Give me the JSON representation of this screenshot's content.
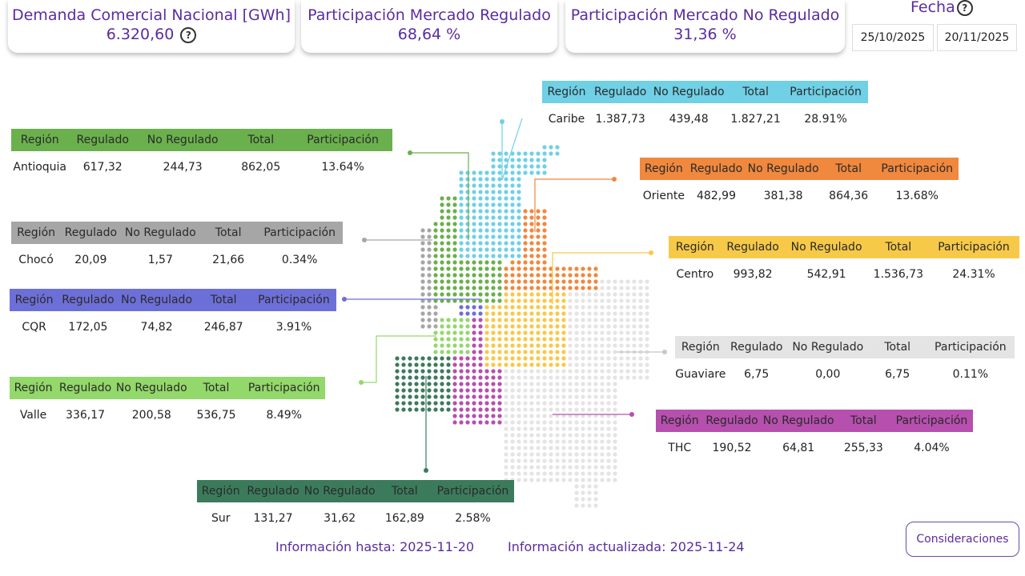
{
  "kpis": [
    {
      "label": "Demanda Comercial Nacional [GWh]",
      "value": "6.320,60"
    },
    {
      "label": "Participación Mercado Regulado",
      "value": "68,64 %"
    },
    {
      "label": "Participación Mercado No Regulado",
      "value": "31,36 %"
    }
  ],
  "date_filter": {
    "label": "Fecha",
    "start": "25/10/2025",
    "end": "20/11/2025"
  },
  "columns": [
    "Región",
    "Regulado",
    "No Regulado",
    "Total",
    "Participación"
  ],
  "regions": [
    {
      "color": "#6fd0e6",
      "row": [
        "Caribe",
        "1.387,73",
        "439,48",
        "1.827,21",
        "28.91%"
      ]
    },
    {
      "color": "#6ab04c",
      "row": [
        "Antioquia",
        "617,32",
        "244,73",
        "862,05",
        "13.64%"
      ]
    },
    {
      "color": "#f0883e",
      "row": [
        "Oriente",
        "482,99",
        "381,38",
        "864,36",
        "13.68%"
      ]
    },
    {
      "color": "#a6a6a6",
      "row": [
        "Chocó",
        "20,09",
        "1,57",
        "21,66",
        "0.34%"
      ]
    },
    {
      "color": "#f7c948",
      "row": [
        "Centro",
        "993,82",
        "542,91",
        "1.536,73",
        "24.31%"
      ]
    },
    {
      "color": "#6d6fd8",
      "row": [
        "CQR",
        "172,05",
        "74,82",
        "246,87",
        "3.91%"
      ]
    },
    {
      "color": "#e4e4e4",
      "row": [
        "Guaviare",
        "6,75",
        "0,00",
        "6,75",
        "0.11%"
      ]
    },
    {
      "color": "#93d86a",
      "row": [
        "Valle",
        "336,17",
        "200,58",
        "536,75",
        "8.49%"
      ]
    },
    {
      "color": "#b64fae",
      "row": [
        "THC",
        "190,52",
        "64,81",
        "255,33",
        "4.04%"
      ]
    },
    {
      "color": "#3b7b5c",
      "row": [
        "Sur",
        "131,27",
        "31,62",
        "162,89",
        "2.58%"
      ]
    }
  ],
  "footer": {
    "info_until": "Información hasta: 2025-11-20",
    "info_updated": "Información actualizada: 2025-11-24"
  },
  "button": "Consideraciones"
}
